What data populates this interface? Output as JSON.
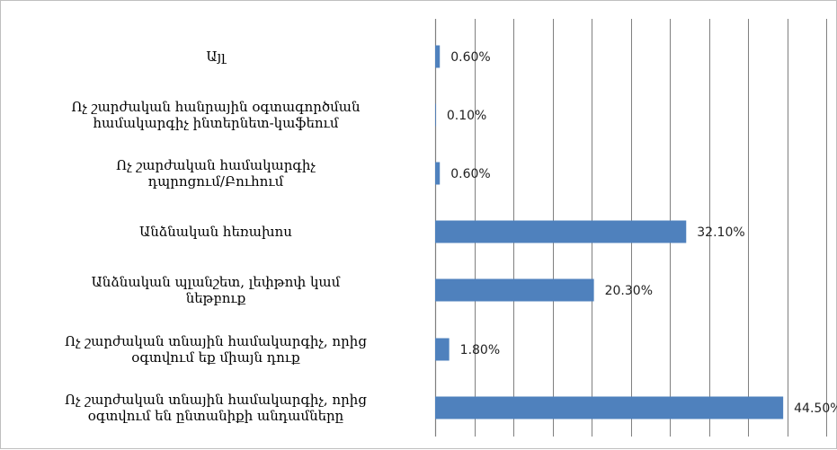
{
  "chart_data": {
    "type": "bar",
    "orientation": "horizontal",
    "categories": [
      [
        "Այլ"
      ],
      [
        "Ոչ շարժական հանրային օգտագործման",
        "համակարգիչ ինտերնետ-կաֆեում"
      ],
      [
        "Ոչ շարժական համակարգիչ",
        "դպրոցում/Բուհում"
      ],
      [
        "Անձնական հեռախոս"
      ],
      [
        "Անձնական պլանշետ, լեփթոփ կամ",
        "նեթբուք"
      ],
      [
        "Ոչ շարժական տնային համակարգիչ, որից",
        "օգտվում եք միայն դուք"
      ],
      [
        "Ոչ շարժական տնային համակարգիչ, որից",
        "օգտվում են ընտանիքի անդամները"
      ]
    ],
    "values": [
      0.6,
      0.1,
      0.6,
      32.1,
      20.3,
      1.8,
      44.5
    ],
    "data_labels": [
      "0.60%",
      "0.10%",
      "0.60%",
      "32.10%",
      "20.30%",
      "1.80%",
      "44.50%"
    ],
    "xlim": [
      0,
      50
    ],
    "x_gridlines": 10,
    "grid": true,
    "bar_color": "#4f81bd",
    "grid_color": "#808080"
  }
}
